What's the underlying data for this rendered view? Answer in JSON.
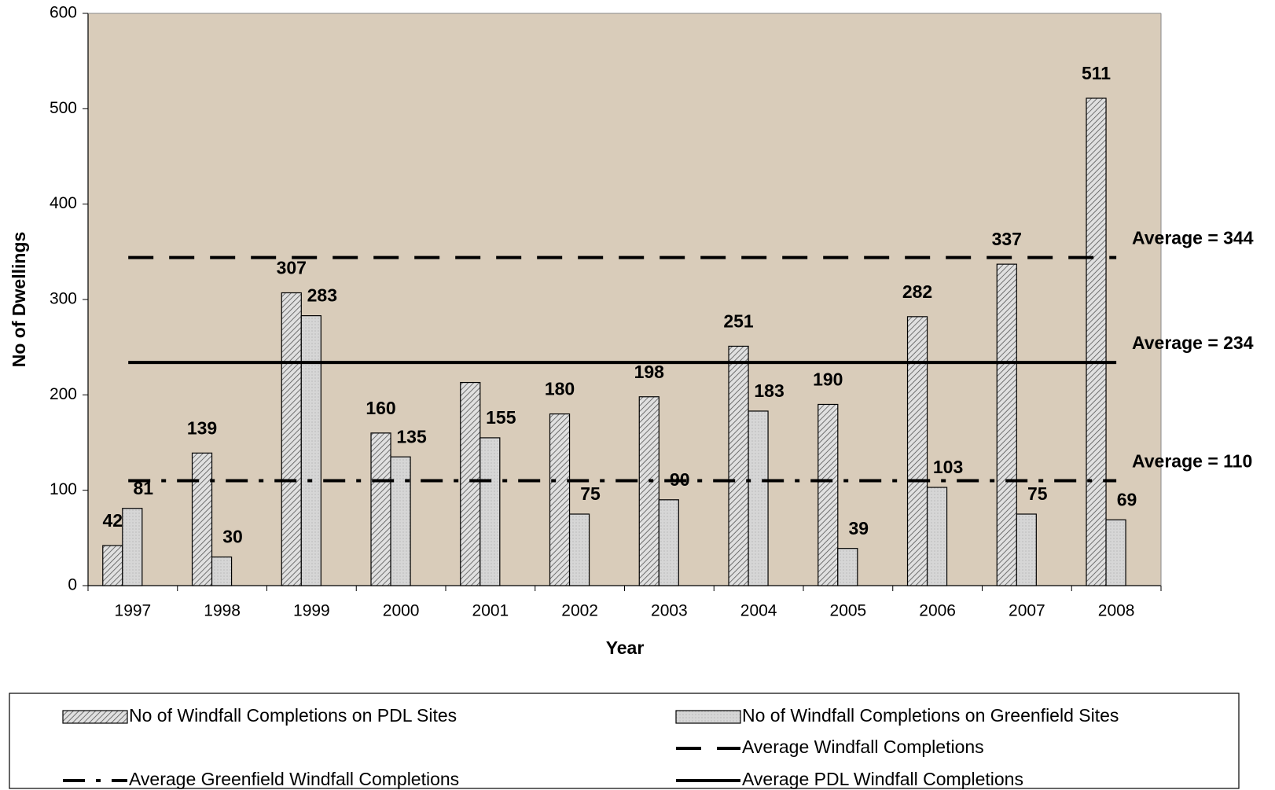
{
  "chart_data": {
    "type": "bar",
    "x_label": "Year",
    "y_label": "No of Dwellings",
    "categories": [
      "1997",
      "1998",
      "1999",
      "2000",
      "2001",
      "2002",
      "2003",
      "2004",
      "2005",
      "2006",
      "2007",
      "2008"
    ],
    "series": [
      {
        "name": "No of Windfall Completions on PDL Sites",
        "color": "#bfbfbf",
        "values": [
          42,
          139,
          307,
          160,
          213,
          180,
          198,
          251,
          190,
          282,
          337,
          511
        ],
        "value_labels": [
          "42",
          "139",
          "307",
          "160",
          null,
          "180",
          "198",
          "251",
          "190",
          "282",
          "337",
          "511"
        ]
      },
      {
        "name": "No of Windfall Completions on Greenfield Sites",
        "color": "#d9d9d9",
        "values": [
          81,
          30,
          283,
          135,
          155,
          75,
          90,
          183,
          39,
          103,
          75,
          69
        ]
      }
    ],
    "averages": [
      {
        "name": "Average Windfall Completions",
        "value": 344,
        "label": "Average = 344",
        "style": "dashed"
      },
      {
        "name": "Average Greenfield Windfall Completions",
        "value": 110,
        "label": "Average = 110",
        "style": "dashdot"
      },
      {
        "name": "Average PDL Windfall Completions",
        "value": 234,
        "label": "Average = 234",
        "style": "solid"
      }
    ],
    "ylim": [
      0,
      600
    ],
    "yticks": [
      0,
      100,
      200,
      300,
      400,
      500,
      600
    ],
    "grid": false
  }
}
